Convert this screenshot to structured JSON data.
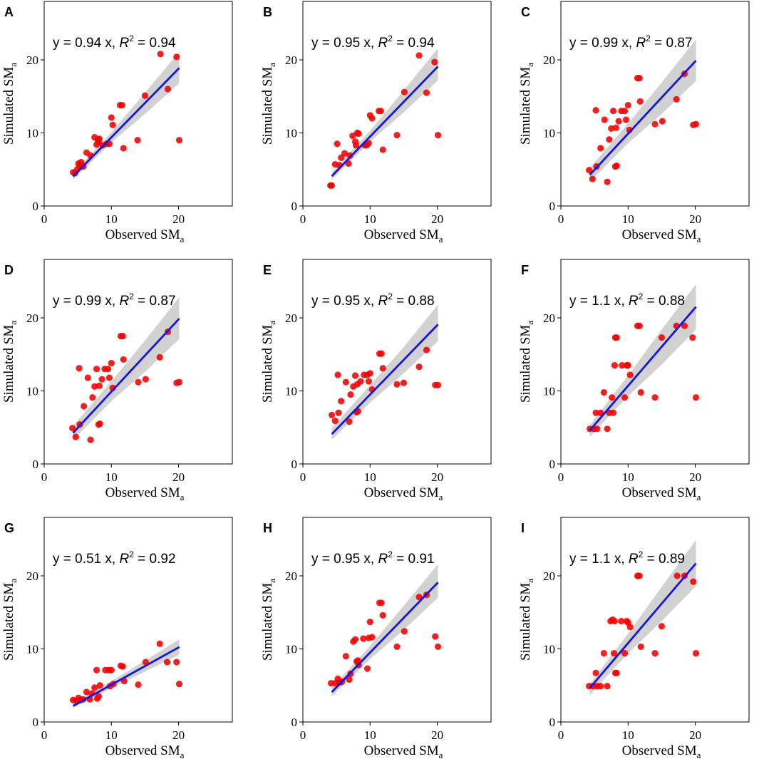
{
  "figure": {
    "xlabel_main": "Observed SM",
    "ylabel_main": "Simulated SM",
    "label_subscript": "a",
    "point_color": "#f40000",
    "line_color": "#1414e6",
    "band_color": "#d2d2d2"
  },
  "chart_data": [
    {
      "type": "scatter",
      "panel": "A",
      "eq_prefix": "y = 0.94 x, ",
      "eq_r": "R",
      "eq_sup": "2",
      "eq_value": " = 0.94",
      "slope": 0.94,
      "xlim": [
        0,
        28
      ],
      "ylim": [
        0,
        28
      ],
      "xticks": [
        0,
        10,
        20
      ],
      "yticks": [
        0,
        10,
        20
      ],
      "fit_range": [
        4.3,
        20.1
      ],
      "band": [
        [
          4.3,
          3.6,
          4.5
        ],
        [
          10,
          8.7,
          10.1
        ],
        [
          15,
          12.6,
          15.5
        ],
        [
          20.1,
          16.8,
          21.1
        ]
      ],
      "points": [
        [
          4.3,
          4.6
        ],
        [
          4.6,
          4.5
        ],
        [
          4.9,
          5.0
        ],
        [
          5.1,
          5.8
        ],
        [
          5.3,
          5.5
        ],
        [
          5.5,
          6.0
        ],
        [
          5.8,
          5.4
        ],
        [
          6.3,
          7.3
        ],
        [
          6.9,
          6.9
        ],
        [
          7.5,
          9.4
        ],
        [
          7.8,
          8.4
        ],
        [
          8.0,
          9.0
        ],
        [
          8.1,
          8.8
        ],
        [
          8.2,
          9.2
        ],
        [
          8.7,
          8.3
        ],
        [
          9.3,
          8.5
        ],
        [
          9.7,
          8.5
        ],
        [
          10.0,
          12.1
        ],
        [
          10.2,
          11.1
        ],
        [
          11.3,
          13.8
        ],
        [
          11.6,
          13.8
        ],
        [
          11.8,
          7.9
        ],
        [
          13.9,
          9.0
        ],
        [
          15.0,
          15.1
        ],
        [
          17.3,
          20.8
        ],
        [
          18.4,
          16.0
        ],
        [
          19.7,
          20.4
        ],
        [
          20.1,
          9.0
        ]
      ]
    },
    {
      "type": "scatter",
      "panel": "B",
      "eq_prefix": "y = 0.95 x, ",
      "eq_r": "R",
      "eq_sup": "2",
      "eq_value": " = 0.94",
      "slope": 0.95,
      "xlim": [
        0,
        28
      ],
      "ylim": [
        0,
        28
      ],
      "xticks": [
        0,
        10,
        20
      ],
      "yticks": [
        0,
        10,
        20
      ],
      "fit_range": [
        4.3,
        20.1
      ],
      "band": [
        [
          4.3,
          3.6,
          4.6
        ],
        [
          10,
          8.8,
          10.3
        ],
        [
          15,
          12.8,
          15.8
        ],
        [
          20.1,
          17.2,
          21.6
        ]
      ],
      "points": [
        [
          4.1,
          2.8
        ],
        [
          4.3,
          2.8
        ],
        [
          4.8,
          5.7
        ],
        [
          5.1,
          8.5
        ],
        [
          5.4,
          5.6
        ],
        [
          5.7,
          6.6
        ],
        [
          6.2,
          7.2
        ],
        [
          6.8,
          5.8
        ],
        [
          7.0,
          6.9
        ],
        [
          7.4,
          9.6
        ],
        [
          7.8,
          8.8
        ],
        [
          7.9,
          8.3
        ],
        [
          8.1,
          10.0
        ],
        [
          8.3,
          9.9
        ],
        [
          9.2,
          8.3
        ],
        [
          9.5,
          8.3
        ],
        [
          9.8,
          8.6
        ],
        [
          10.0,
          12.4
        ],
        [
          10.3,
          12.0
        ],
        [
          11.3,
          13.0
        ],
        [
          11.6,
          13.0
        ],
        [
          11.9,
          7.7
        ],
        [
          14.0,
          9.7
        ],
        [
          15.1,
          15.6
        ],
        [
          17.3,
          20.6
        ],
        [
          18.4,
          15.5
        ],
        [
          19.6,
          19.7
        ],
        [
          20.1,
          9.7
        ]
      ]
    },
    {
      "type": "scatter",
      "panel": "C",
      "eq_prefix": "y = 0.99 x, ",
      "eq_r": "R",
      "eq_sup": "2",
      "eq_value": " = 0.87",
      "slope": 0.99,
      "xlim": [
        0,
        28
      ],
      "ylim": [
        0,
        28
      ],
      "xticks": [
        0,
        10,
        20
      ],
      "yticks": [
        0,
        10,
        20
      ],
      "fit_range": [
        4.3,
        20.1
      ],
      "band": [
        [
          4.3,
          3.3,
          5.2
        ],
        [
          10,
          8.6,
          11.3
        ],
        [
          15,
          12.6,
          16.9
        ],
        [
          20.1,
          17.1,
          22.8
        ]
      ],
      "points": [
        [
          4.2,
          4.9
        ],
        [
          4.7,
          3.7
        ],
        [
          5.2,
          13.1
        ],
        [
          5.3,
          5.4
        ],
        [
          5.9,
          7.9
        ],
        [
          6.5,
          11.8
        ],
        [
          6.9,
          3.3
        ],
        [
          7.2,
          9.1
        ],
        [
          7.5,
          10.6
        ],
        [
          7.8,
          13.0
        ],
        [
          8.1,
          5.4
        ],
        [
          8.2,
          10.7
        ],
        [
          8.3,
          5.5
        ],
        [
          8.6,
          11.6
        ],
        [
          9.0,
          13.0
        ],
        [
          9.5,
          13.0
        ],
        [
          9.7,
          11.8
        ],
        [
          10.0,
          13.8
        ],
        [
          10.2,
          10.4
        ],
        [
          11.4,
          17.5
        ],
        [
          11.7,
          17.5
        ],
        [
          11.8,
          14.3
        ],
        [
          14.0,
          11.2
        ],
        [
          15.1,
          11.6
        ],
        [
          17.2,
          14.6
        ],
        [
          18.4,
          18.1
        ],
        [
          19.7,
          11.1
        ],
        [
          20.1,
          11.2
        ]
      ]
    },
    {
      "type": "scatter",
      "panel": "D",
      "eq_prefix": "y = 0.99 x, ",
      "eq_r": "R",
      "eq_sup": "2",
      "eq_value": " = 0.87",
      "slope": 0.99,
      "xlim": [
        0,
        28
      ],
      "ylim": [
        0,
        28
      ],
      "xticks": [
        0,
        10,
        20
      ],
      "yticks": [
        0,
        10,
        20
      ],
      "fit_range": [
        4.3,
        20.1
      ],
      "band": [
        [
          4.3,
          3.3,
          5.2
        ],
        [
          10,
          8.6,
          11.3
        ],
        [
          15,
          12.6,
          16.9
        ],
        [
          20.1,
          17.1,
          22.8
        ]
      ],
      "points": [
        [
          4.2,
          4.9
        ],
        [
          4.7,
          3.7
        ],
        [
          5.2,
          13.1
        ],
        [
          5.3,
          5.4
        ],
        [
          5.9,
          7.9
        ],
        [
          6.5,
          11.8
        ],
        [
          6.9,
          3.3
        ],
        [
          7.2,
          9.1
        ],
        [
          7.5,
          10.6
        ],
        [
          7.8,
          13.0
        ],
        [
          8.1,
          5.4
        ],
        [
          8.2,
          10.7
        ],
        [
          8.3,
          5.5
        ],
        [
          8.6,
          11.6
        ],
        [
          9.0,
          13.0
        ],
        [
          9.5,
          13.0
        ],
        [
          9.7,
          11.8
        ],
        [
          10.0,
          13.8
        ],
        [
          10.2,
          10.4
        ],
        [
          11.4,
          17.5
        ],
        [
          11.7,
          17.5
        ],
        [
          11.8,
          14.3
        ],
        [
          14.0,
          11.2
        ],
        [
          15.1,
          11.6
        ],
        [
          17.2,
          14.6
        ],
        [
          18.4,
          18.1
        ],
        [
          19.7,
          11.1
        ],
        [
          20.1,
          11.2
        ]
      ]
    },
    {
      "type": "scatter",
      "panel": "E",
      "eq_prefix": "y = 0.95 x, ",
      "eq_r": "R",
      "eq_sup": "2",
      "eq_value": " = 0.88",
      "slope": 0.95,
      "xlim": [
        0,
        28
      ],
      "ylim": [
        0,
        28
      ],
      "xticks": [
        0,
        10,
        20
      ],
      "yticks": [
        0,
        10,
        20
      ],
      "fit_range": [
        4.3,
        20.1
      ],
      "band": [
        [
          4.3,
          3.3,
          4.9
        ],
        [
          10,
          8.4,
          10.8
        ],
        [
          15,
          12.4,
          16.0
        ],
        [
          20.1,
          16.8,
          21.8
        ]
      ],
      "points": [
        [
          4.3,
          6.7
        ],
        [
          4.8,
          5.9
        ],
        [
          5.2,
          12.2
        ],
        [
          5.3,
          7.0
        ],
        [
          5.7,
          8.6
        ],
        [
          6.4,
          11.2
        ],
        [
          6.9,
          5.8
        ],
        [
          7.1,
          9.5
        ],
        [
          7.5,
          10.6
        ],
        [
          7.8,
          12.1
        ],
        [
          8.0,
          7.1
        ],
        [
          8.1,
          10.9
        ],
        [
          8.2,
          7.2
        ],
        [
          8.6,
          11.3
        ],
        [
          9.1,
          12.2
        ],
        [
          9.6,
          12.2
        ],
        [
          9.8,
          11.3
        ],
        [
          10.0,
          12.4
        ],
        [
          10.3,
          10.2
        ],
        [
          11.4,
          15.1
        ],
        [
          11.7,
          15.1
        ],
        [
          11.9,
          13.1
        ],
        [
          14.0,
          10.9
        ],
        [
          15.0,
          11.1
        ],
        [
          17.3,
          13.3
        ],
        [
          18.4,
          15.6
        ],
        [
          19.7,
          10.8
        ],
        [
          20.1,
          10.8
        ]
      ]
    },
    {
      "type": "scatter",
      "panel": "F",
      "eq_prefix": "y = 1.1 x, ",
      "eq_r": "R",
      "eq_sup": "2",
      "eq_value": " = 0.88",
      "slope": 1.07,
      "xlim": [
        0,
        28
      ],
      "ylim": [
        0,
        28
      ],
      "xticks": [
        0,
        10,
        20
      ],
      "yticks": [
        0,
        10,
        20
      ],
      "fit_range": [
        4.3,
        20.1
      ],
      "band": [
        [
          4.3,
          3.7,
          5.3
        ],
        [
          10,
          9.3,
          12.1
        ],
        [
          15,
          13.6,
          18.4
        ],
        [
          20.1,
          18.4,
          24.6
        ]
      ],
      "points": [
        [
          4.3,
          4.8
        ],
        [
          4.9,
          4.8
        ],
        [
          5.2,
          7.0
        ],
        [
          5.4,
          4.8
        ],
        [
          5.9,
          7.0
        ],
        [
          6.4,
          9.8
        ],
        [
          6.9,
          4.8
        ],
        [
          7.2,
          7.0
        ],
        [
          7.6,
          9.1
        ],
        [
          7.8,
          7.0
        ],
        [
          8.0,
          13.5
        ],
        [
          8.1,
          17.3
        ],
        [
          8.3,
          17.3
        ],
        [
          9.1,
          13.5
        ],
        [
          9.5,
          9.1
        ],
        [
          9.8,
          13.5
        ],
        [
          10.0,
          13.5
        ],
        [
          10.3,
          12.2
        ],
        [
          11.4,
          18.9
        ],
        [
          11.7,
          18.9
        ],
        [
          11.9,
          9.8
        ],
        [
          14.0,
          9.1
        ],
        [
          15.0,
          17.3
        ],
        [
          17.2,
          18.9
        ],
        [
          18.4,
          18.9
        ],
        [
          19.6,
          17.3
        ],
        [
          20.1,
          9.1
        ]
      ]
    },
    {
      "type": "scatter",
      "panel": "G",
      "eq_prefix": "y = 0.51 x, ",
      "eq_r": "R",
      "eq_sup": "2",
      "eq_value": " = 0.92",
      "slope": 0.51,
      "xlim": [
        0,
        28
      ],
      "ylim": [
        0,
        28
      ],
      "xticks": [
        0,
        10,
        20
      ],
      "yticks": [
        0,
        10,
        20
      ],
      "fit_range": [
        4.3,
        20.1
      ],
      "band": [
        [
          4.3,
          1.9,
          2.5
        ],
        [
          10,
          4.6,
          5.6
        ],
        [
          15,
          6.9,
          8.4
        ],
        [
          20.1,
          9.2,
          11.3
        ]
      ],
      "points": [
        [
          4.3,
          3.0
        ],
        [
          4.8,
          2.9
        ],
        [
          5.1,
          3.3
        ],
        [
          5.4,
          3.0
        ],
        [
          5.8,
          3.1
        ],
        [
          6.3,
          4.1
        ],
        [
          6.8,
          3.1
        ],
        [
          7.1,
          3.9
        ],
        [
          7.5,
          4.7
        ],
        [
          7.8,
          7.1
        ],
        [
          7.9,
          3.2
        ],
        [
          8.1,
          3.5
        ],
        [
          8.3,
          5.0
        ],
        [
          9.1,
          7.1
        ],
        [
          9.6,
          7.1
        ],
        [
          9.8,
          4.9
        ],
        [
          10.0,
          7.1
        ],
        [
          10.3,
          5.2
        ],
        [
          11.4,
          7.7
        ],
        [
          11.7,
          7.6
        ],
        [
          11.9,
          5.6
        ],
        [
          14.0,
          5.1
        ],
        [
          15.1,
          8.2
        ],
        [
          17.2,
          10.7
        ],
        [
          18.3,
          8.2
        ],
        [
          19.7,
          8.2
        ],
        [
          20.1,
          5.2
        ]
      ]
    },
    {
      "type": "scatter",
      "panel": "H",
      "eq_prefix": "y = 0.95 x, ",
      "eq_r": "R",
      "eq_sup": "2",
      "eq_value": " = 0.91",
      "slope": 0.95,
      "xlim": [
        0,
        28
      ],
      "ylim": [
        0,
        28
      ],
      "xticks": [
        0,
        10,
        20
      ],
      "yticks": [
        0,
        10,
        20
      ],
      "fit_range": [
        4.3,
        20.1
      ],
      "band": [
        [
          4.3,
          3.5,
          4.7
        ],
        [
          10,
          8.6,
          10.4
        ],
        [
          15,
          12.6,
          15.9
        ],
        [
          20.1,
          17.0,
          21.6
        ]
      ],
      "points": [
        [
          4.2,
          5.3
        ],
        [
          4.8,
          5.3
        ],
        [
          5.2,
          5.9
        ],
        [
          5.4,
          5.4
        ],
        [
          5.8,
          5.5
        ],
        [
          6.4,
          9.0
        ],
        [
          6.9,
          5.8
        ],
        [
          7.1,
          6.6
        ],
        [
          7.5,
          11.0
        ],
        [
          7.8,
          11.3
        ],
        [
          8.0,
          8.3
        ],
        [
          8.2,
          8.4
        ],
        [
          8.3,
          7.8
        ],
        [
          9.0,
          11.4
        ],
        [
          9.6,
          7.3
        ],
        [
          9.8,
          11.5
        ],
        [
          10.0,
          13.7
        ],
        [
          10.3,
          11.6
        ],
        [
          11.4,
          16.3
        ],
        [
          11.7,
          16.3
        ],
        [
          11.9,
          14.6
        ],
        [
          14.0,
          10.3
        ],
        [
          15.1,
          12.4
        ],
        [
          17.3,
          17.1
        ],
        [
          18.4,
          17.4
        ],
        [
          19.7,
          11.7
        ],
        [
          20.1,
          10.3
        ]
      ]
    },
    {
      "type": "scatter",
      "panel": "I",
      "eq_prefix": "y = 1.1 x, ",
      "eq_r": "R",
      "eq_sup": "2",
      "eq_value": " = 0.89",
      "slope": 1.08,
      "xlim": [
        0,
        28
      ],
      "ylim": [
        0,
        28
      ],
      "xticks": [
        0,
        10,
        20
      ],
      "yticks": [
        0,
        10,
        20
      ],
      "fit_range": [
        4.3,
        20.1
      ],
      "band": [
        [
          4.3,
          3.7,
          5.2
        ],
        [
          10,
          9.4,
          12.1
        ],
        [
          15,
          13.8,
          18.5
        ],
        [
          20.1,
          18.6,
          24.9
        ]
      ],
      "points": [
        [
          4.2,
          4.9
        ],
        [
          4.8,
          4.9
        ],
        [
          5.2,
          6.7
        ],
        [
          5.4,
          4.9
        ],
        [
          5.9,
          4.9
        ],
        [
          6.4,
          9.4
        ],
        [
          6.9,
          4.9
        ],
        [
          7.4,
          13.8
        ],
        [
          7.7,
          14.0
        ],
        [
          7.9,
          9.4
        ],
        [
          8.0,
          13.8
        ],
        [
          8.1,
          6.7
        ],
        [
          8.3,
          6.7
        ],
        [
          9.0,
          13.8
        ],
        [
          9.5,
          9.4
        ],
        [
          9.8,
          13.8
        ],
        [
          10.0,
          13.6
        ],
        [
          10.3,
          13.0
        ],
        [
          11.4,
          20.0
        ],
        [
          11.7,
          20.0
        ],
        [
          11.9,
          10.3
        ],
        [
          14.0,
          9.4
        ],
        [
          15.0,
          13.1
        ],
        [
          17.3,
          20.0
        ],
        [
          18.4,
          20.0
        ],
        [
          19.7,
          19.2
        ],
        [
          20.1,
          9.4
        ]
      ]
    }
  ]
}
